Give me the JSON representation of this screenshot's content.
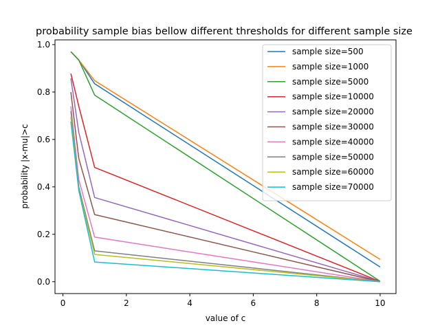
{
  "chart_data": {
    "type": "line",
    "title": "probability sample bias bellow different thresholds for different sample size",
    "xlabel": "value of c",
    "ylabel": "probability |x-mu|>c",
    "x": [
      0.25,
      0.5,
      1,
      10
    ],
    "xlim": [
      -0.25,
      10.5
    ],
    "ylim": [
      -0.05,
      1.02
    ],
    "xticks": [
      0,
      2,
      4,
      6,
      8,
      10
    ],
    "yticks": [
      0.0,
      0.2,
      0.4,
      0.6,
      0.8,
      1.0
    ],
    "xtick_labels": [
      "0",
      "2",
      "4",
      "6",
      "8",
      "10"
    ],
    "ytick_labels": [
      "0.0",
      "0.2",
      "0.4",
      "0.6",
      "0.8",
      "1.0"
    ],
    "grid": false,
    "legend_position": "top-right",
    "series": [
      {
        "name": "sample size=500",
        "color": "#1f77b4",
        "values": [
          0.97,
          0.935,
          0.835,
          0.062
        ]
      },
      {
        "name": "sample size=1000",
        "color": "#ff7f0e",
        "values": [
          0.97,
          0.935,
          0.848,
          0.094
        ]
      },
      {
        "name": "sample size=5000",
        "color": "#2ca02c",
        "values": [
          0.97,
          0.935,
          0.787,
          0.002
        ]
      },
      {
        "name": "sample size=10000",
        "color": "#d62728",
        "values": [
          0.878,
          0.74,
          0.482,
          0.001
        ]
      },
      {
        "name": "sample size=20000",
        "color": "#9467bd",
        "values": [
          0.858,
          0.63,
          0.355,
          0.001
        ]
      },
      {
        "name": "sample size=30000",
        "color": "#8c564b",
        "values": [
          0.8,
          0.52,
          0.283,
          0.0
        ]
      },
      {
        "name": "sample size=40000",
        "color": "#e377c2",
        "values": [
          0.74,
          0.43,
          0.188,
          0.0
        ]
      },
      {
        "name": "sample size=50000",
        "color": "#7f7f7f",
        "values": [
          0.72,
          0.4,
          0.13,
          0.0
        ]
      },
      {
        "name": "sample size=60000",
        "color": "#bcbd22",
        "values": [
          0.695,
          0.39,
          0.115,
          0.0
        ]
      },
      {
        "name": "sample size=70000",
        "color": "#17becf",
        "values": [
          0.675,
          0.385,
          0.083,
          0.0
        ]
      }
    ]
  }
}
